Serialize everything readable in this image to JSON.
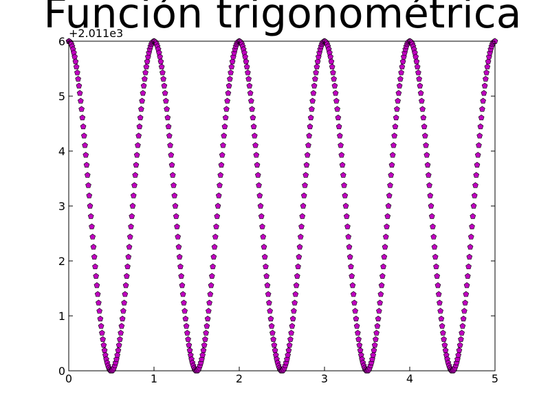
{
  "chart_data": {
    "type": "scatter",
    "title": "Función trigonométrica",
    "xlabel": "",
    "ylabel": "",
    "xlim": [
      0,
      5
    ],
    "ylim": [
      0,
      6
    ],
    "y_offset_label": "+2.011e3",
    "x_ticks": [
      "0",
      "1",
      "2",
      "3",
      "4",
      "5"
    ],
    "y_ticks": [
      "0",
      "1",
      "2",
      "3",
      "4",
      "5",
      "6"
    ],
    "grid": false,
    "marker": "pentagon",
    "marker_color": "#bf00bf",
    "marker_edge_color": "#000000",
    "series": [
      {
        "function": "2014 + 3*cos(2*pi*x)",
        "x_start": 0,
        "x_end": 5,
        "x_step": 0.01
      }
    ]
  }
}
